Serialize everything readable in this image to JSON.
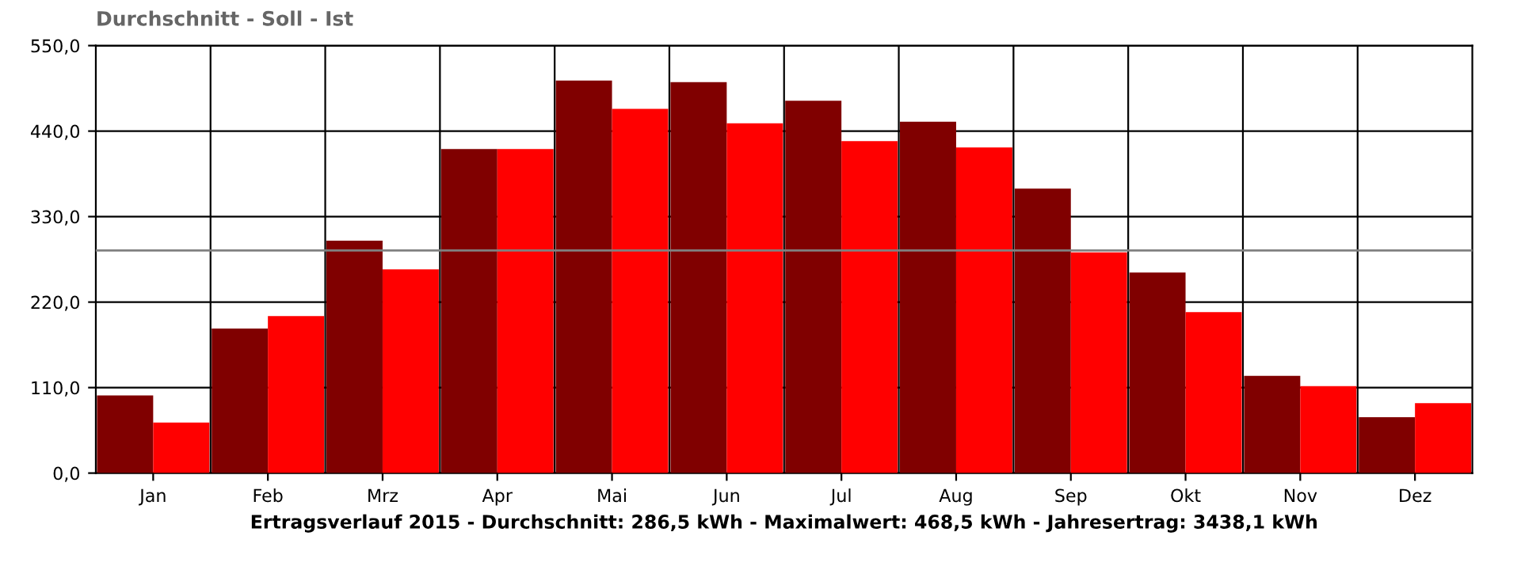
{
  "chart_data": {
    "type": "bar",
    "title": "Durchschnitt - Soll - Ist",
    "xlabel": "Ertragsverlauf 2015 - Durchschnitt: 286,5 kWh - Maximalwert: 468,5 kWh - Jahresertrag: 3438,1 kWh",
    "categories": [
      "Jan",
      "Feb",
      "Mrz",
      "Apr",
      "Mai",
      "Jun",
      "Jul",
      "Aug",
      "Sep",
      "Okt",
      "Nov",
      "Dez"
    ],
    "series": [
      {
        "color": "#800000",
        "values": [
          100,
          186,
          299,
          417,
          505,
          503,
          479,
          452,
          366,
          258,
          125,
          72
        ]
      },
      {
        "color": "#ff0000",
        "values": [
          65,
          202,
          262,
          417,
          468.5,
          450,
          427,
          419,
          284,
          207,
          112,
          90
        ]
      }
    ],
    "ylim": [
      0,
      550
    ],
    "yticks": [
      {
        "value": 0,
        "label": "0,0"
      },
      {
        "value": 110,
        "label": "110,0"
      },
      {
        "value": 220,
        "label": "220,0"
      },
      {
        "value": 330,
        "label": "330,0"
      },
      {
        "value": 440,
        "label": "440,0"
      },
      {
        "value": 550,
        "label": "550,0"
      }
    ],
    "ref_lines": [
      {
        "axis": "y",
        "value": 286.5,
        "color": "#808080"
      }
    ],
    "grid": true
  }
}
